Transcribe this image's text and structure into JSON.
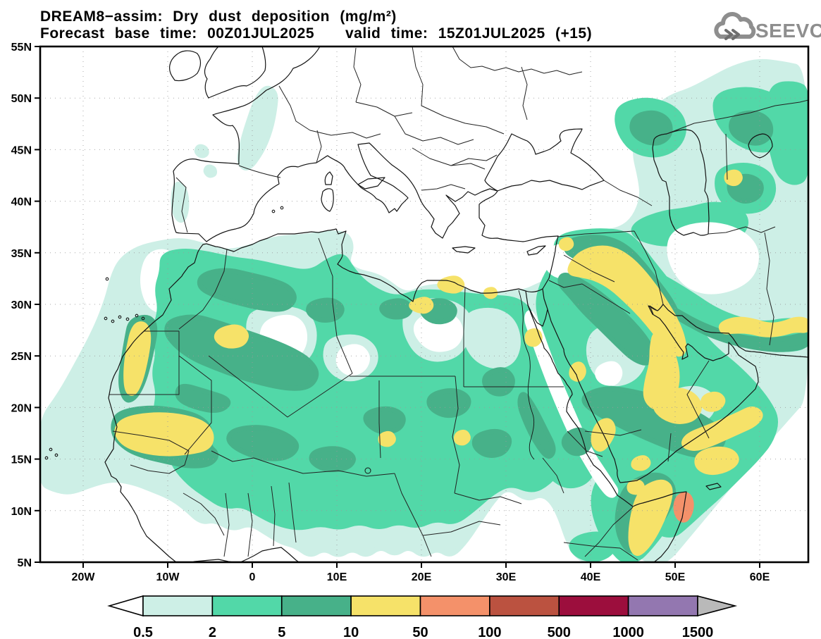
{
  "title": {
    "line1": "DREAM8−assim: Dry dust deposition (mg/m²)",
    "line2a": "Forecast base time: 00Z01JUL2025",
    "line2b": "valid time: 15Z01JUL2025 (+15)"
  },
  "logo": {
    "text": "SEEVCCC",
    "color": "#8e8e8e"
  },
  "axes": {
    "lat_labels": [
      "55N",
      "50N",
      "45N",
      "40N",
      "35N",
      "30N",
      "25N",
      "20N",
      "15N",
      "10N",
      "5N"
    ],
    "lon_labels": [
      "20W",
      "10W",
      "0",
      "10E",
      "20E",
      "30E",
      "40E",
      "50E",
      "60E"
    ]
  },
  "colorbar": {
    "levels": [
      "0.5",
      "2",
      "5",
      "10",
      "50",
      "100",
      "500",
      "1000",
      "1500"
    ],
    "colors": [
      "#cdefe6",
      "#52d8a8",
      "#47b189",
      "#f6e269",
      "#f4916a",
      "#bb5240",
      "#9c0e3d",
      "#9377b0"
    ],
    "arrow_left_color": "#ffffff",
    "arrow_right_color": "#b9b9b9"
  },
  "chart_data": {
    "type": "contour_map",
    "model": "DREAM8-assim",
    "variable": "Dry dust deposition",
    "units": "mg/m²",
    "base_time": "00Z01JUL2025",
    "valid_time": "15Z01JUL2025",
    "forecast_hour": "+15",
    "contour_levels": [
      0.5,
      2,
      5,
      10,
      50,
      100,
      500,
      1000,
      1500
    ],
    "level_colors": [
      "#cdefe6",
      "#52d8a8",
      "#47b189",
      "#f6e269",
      "#f4916a",
      "#bb5240",
      "#9c0e3d",
      "#9377b0"
    ],
    "lat_ticks": [
      "5N",
      "10N",
      "15N",
      "20N",
      "25N",
      "30N",
      "35N",
      "40N",
      "45N",
      "50N",
      "55N"
    ],
    "lon_ticks": [
      "20W",
      "10W",
      "0",
      "10E",
      "20E",
      "30E",
      "40E",
      "50E",
      "60E"
    ],
    "grid": "dotted, every 10 deg lon / 5 deg lat",
    "legend_position": "bottom",
    "depicted_maxima": [
      {
        "region": "coastal Western Sahara",
        "range_mg_m2": "10-50"
      },
      {
        "region": "southern Mauritania / Senegal / western Mali",
        "range_mg_m2": "10-50"
      },
      {
        "region": "Syria-Jordan-Iraq to Persian Gulf corridor",
        "range_mg_m2": "10-50"
      },
      {
        "region": "south-central Saudi Arabia",
        "range_mg_m2": "10-50"
      },
      {
        "region": "southern Iran coast",
        "range_mg_m2": "10-50"
      },
      {
        "region": "Yemen / Oman coast",
        "range_mg_m2": "10-50"
      },
      {
        "region": "eastern Somalia",
        "range_mg_m2": "50-100"
      },
      {
        "region": "east of Caspian Sea",
        "range_mg_m2": "10-50"
      },
      {
        "region": "Sahara 2-10 mg/m2 background over most of North Africa and Arabia",
        "range_mg_m2": "2-10"
      }
    ]
  }
}
